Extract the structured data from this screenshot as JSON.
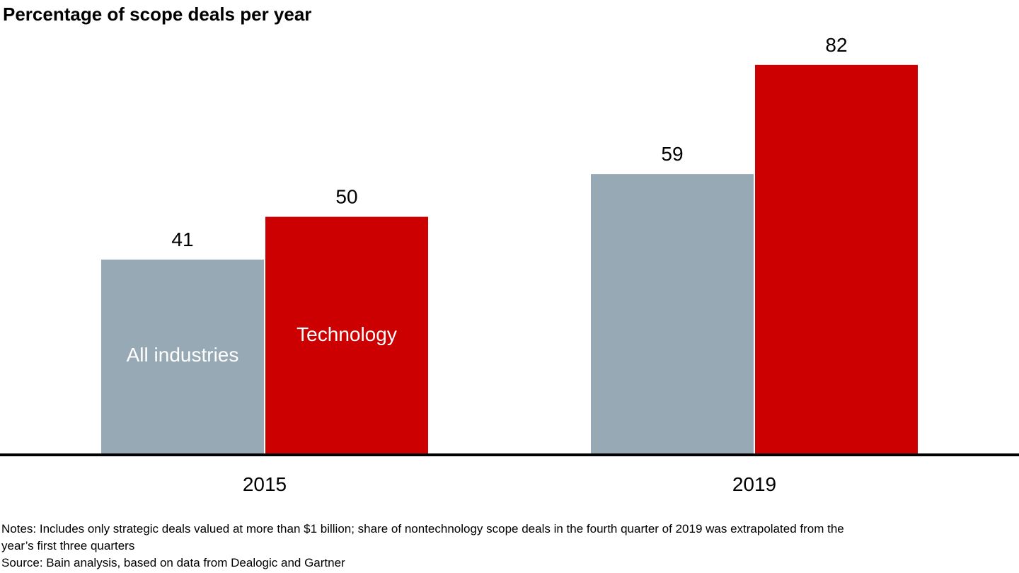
{
  "chart_data": {
    "type": "bar",
    "title": "Percentage of scope deals per year",
    "categories": [
      "2015",
      "2019"
    ],
    "series": [
      {
        "name": "All industries",
        "values": [
          41,
          59
        ],
        "color": "#98a9b6"
      },
      {
        "name": "Technology",
        "values": [
          50,
          82
        ],
        "color": "#cc0000"
      }
    ],
    "ylim": [
      0,
      90
    ],
    "grid": false,
    "legend": "inside first-group bars",
    "xlabel": "",
    "ylabel": ""
  },
  "notes": {
    "line1": "Notes: Includes only strategic deals valued at more than $1 billion; share of nontechnology scope deals in the fourth quarter of 2019 was extrapolated from the",
    "line2": "year’s first three quarters",
    "source": "Source: Bain analysis, based on data from Dealogic and Gartner"
  }
}
